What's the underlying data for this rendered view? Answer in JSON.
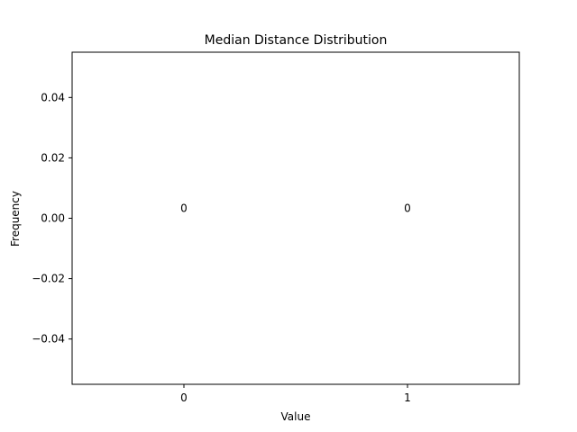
{
  "chart_data": {
    "type": "bar",
    "title": "Median Distance Distribution",
    "xlabel": "Value",
    "ylabel": "Frequency",
    "categories": [
      "0",
      "1"
    ],
    "x": [
      0,
      1
    ],
    "values": [
      0,
      0
    ],
    "data_labels": [
      "0",
      "0"
    ],
    "xlim": [
      -0.5,
      1.5
    ],
    "ylim": [
      -0.055,
      0.055
    ],
    "yticks": [
      -0.04,
      -0.02,
      0.0,
      0.02,
      0.04
    ],
    "ytick_labels": [
      "−0.04",
      "−0.02",
      "0.00",
      "0.02",
      "0.04"
    ],
    "xtick_labels": [
      "0",
      "1"
    ],
    "grid": false,
    "legend": false,
    "colors": {
      "background": "#ffffff",
      "axes": "#000000",
      "text": "#000000",
      "bar": "#1f77b4"
    }
  }
}
